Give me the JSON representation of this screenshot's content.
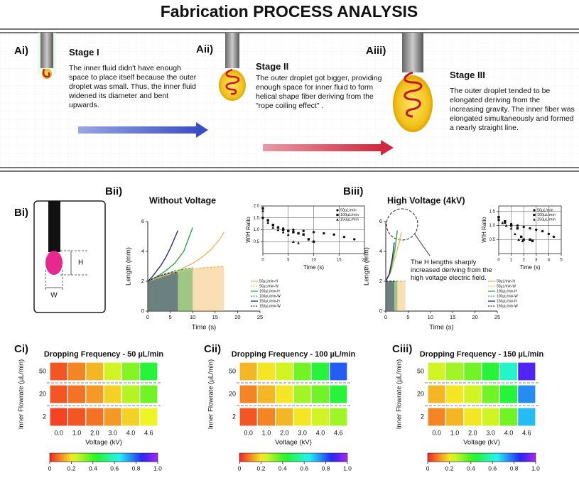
{
  "title": "Fabrication PROCESS ANALYSIS",
  "stages": [
    {
      "label": "Ai)",
      "title": "Stage I",
      "text": "The inner fluid didn't have enough space to place itself because the outer droplet was small. Thus, the inner fluid widened its diameter and bent upwards."
    },
    {
      "label": "Aii)",
      "title": "Stage II",
      "text": "The outer droplet got bigger, providing enough space for inner fluid to form helical shape fiber deriving from the \"rope coiling effect\" ."
    },
    {
      "label": "Aiii)",
      "title": "Stage III",
      "text": "The outer droplet tended to be elongated deriving from the increasing gravity. The inner fiber was elongated simultaneously and formed a nearly straight line."
    }
  ],
  "diagram": {
    "label": "Bi)",
    "h": "H",
    "w": "W"
  },
  "chart_data": [
    {
      "type": "line",
      "panel": "Bii)",
      "title": "Without Voltage",
      "xlabel": "Time (s)",
      "ylabel": "Length (mm)",
      "xlim": [
        0,
        25
      ],
      "ylim": [
        0,
        6
      ],
      "xticks": [
        0,
        5,
        10,
        15,
        20,
        25
      ],
      "yticks": [
        0,
        2,
        4,
        6
      ],
      "grid": false,
      "legend": "lower right",
      "series": [
        {
          "name": "50µL/min-H",
          "color": "#f2b75a",
          "dash": false,
          "area": false,
          "x": [
            0,
            2,
            4,
            6,
            8,
            10,
            12,
            14,
            16,
            17
          ],
          "values": [
            2.0,
            2.2,
            2.4,
            2.6,
            2.9,
            3.2,
            3.6,
            4.1,
            4.8,
            5.3
          ]
        },
        {
          "name": "50µL/min-W",
          "color": "#f2b75a",
          "dash": true,
          "area": true,
          "x": [
            0,
            4,
            8,
            12,
            17
          ],
          "values": [
            2.0,
            2.4,
            2.7,
            2.9,
            3.0
          ]
        },
        {
          "name": "100µL/min-H",
          "color": "#2ea84a",
          "dash": false,
          "area": false,
          "x": [
            0,
            2,
            4,
            6,
            8,
            9,
            10
          ],
          "values": [
            2.0,
            2.3,
            2.7,
            3.2,
            4.0,
            4.8,
            5.6
          ]
        },
        {
          "name": "100µL/min-W",
          "color": "#2ea84a",
          "dash": true,
          "area": true,
          "x": [
            0,
            2,
            4,
            6,
            8,
            10
          ],
          "values": [
            2.0,
            2.3,
            2.5,
            2.7,
            2.8,
            2.9
          ]
        },
        {
          "name": "150µL/min-H",
          "color": "#2b2d7a",
          "dash": false,
          "area": false,
          "x": [
            0,
            1,
            2,
            3,
            4,
            5,
            6,
            6.7
          ],
          "values": [
            2.0,
            2.3,
            2.7,
            3.1,
            3.6,
            4.2,
            4.9,
            5.4
          ]
        },
        {
          "name": "150µL/min-W",
          "color": "#2b2d7a",
          "dash": true,
          "area": true,
          "x": [
            0,
            2,
            4,
            6.7
          ],
          "values": [
            2.0,
            2.3,
            2.5,
            2.6
          ]
        }
      ]
    },
    {
      "type": "scatter",
      "xlabel": "Time (s)",
      "ylabel": "W/H Ratio",
      "xlim": [
        0,
        20
      ],
      "ylim": [
        0,
        2
      ],
      "xticks": [
        0,
        5,
        10,
        15,
        20
      ],
      "yticks": [
        0.5,
        {
          "value": 1,
          "label": "1.0"
        },
        1.5,
        {
          "value": 2,
          "label": "2.0"
        }
      ],
      "grid": true,
      "legend": "upper right",
      "series": [
        {
          "name": "50µL/min",
          "color": "#111111",
          "marker": "circle",
          "x": [
            0,
            2,
            4,
            6,
            8,
            10,
            12,
            14,
            16,
            18
          ],
          "values": [
            1.5,
            1.2,
            1.05,
            1.0,
            0.95,
            0.9,
            0.85,
            0.8,
            0.7,
            0.6
          ]
        },
        {
          "name": "100µL/min",
          "color": "#111111",
          "marker": "square",
          "x": [
            0,
            1,
            2,
            3,
            4,
            5,
            6,
            7,
            8,
            9,
            10
          ],
          "values": [
            1.9,
            1.4,
            1.2,
            1.1,
            1.0,
            0.95,
            0.9,
            0.85,
            0.8,
            0.6,
            0.5
          ]
        },
        {
          "name": "150µL/min",
          "color": "#111111",
          "marker": "triangle",
          "x": [
            0,
            1,
            2,
            3,
            4,
            5,
            6,
            7
          ],
          "values": [
            1.8,
            1.3,
            1.1,
            1.0,
            0.9,
            0.8,
            0.5,
            0.45
          ]
        }
      ]
    },
    {
      "type": "line",
      "panel": "Biii)",
      "title": "High Voltage (4kV)",
      "xlabel": "Time (s)",
      "ylabel": "Length (mm)",
      "annotation": "The H lengths sharply increased deriving from the high voltage electric field.",
      "xlim": [
        0,
        25
      ],
      "ylim": [
        0,
        6
      ],
      "xticks": [
        0,
        5,
        10,
        15,
        20,
        25
      ],
      "yticks": [
        0,
        2,
        4,
        6
      ],
      "grid": false,
      "legend": "lower right",
      "series": [
        {
          "name": "50µL/min-H",
          "color": "#f2b75a",
          "dash": false,
          "area": false,
          "x": [
            0,
            1,
            2,
            3,
            3.5
          ],
          "values": [
            2.0,
            2.5,
            3.5,
            4.6,
            5.3
          ]
        },
        {
          "name": "50µL/min-W",
          "color": "#f2b75a",
          "dash": true,
          "area": true,
          "x": [
            0,
            2,
            4.4
          ],
          "values": [
            2.0,
            2.0,
            2.0
          ]
        },
        {
          "name": "100µL/min-H",
          "color": "#2ea84a",
          "dash": false,
          "area": false,
          "x": [
            0,
            1,
            2,
            2.6
          ],
          "values": [
            2.0,
            2.6,
            4.0,
            5.4
          ]
        },
        {
          "name": "100µL/min-W",
          "color": "#2ea84a",
          "dash": true,
          "area": true,
          "x": [
            0,
            1,
            2.6
          ],
          "values": [
            2.0,
            2.0,
            2.0
          ]
        },
        {
          "name": "150µL/min-H",
          "color": "#2b2d7a",
          "dash": false,
          "area": false,
          "x": [
            0,
            0.8,
            1.5,
            1.9
          ],
          "values": [
            2.0,
            2.5,
            3.6,
            4.6
          ]
        },
        {
          "name": "150µL/min-W",
          "color": "#2b2d7a",
          "dash": true,
          "area": true,
          "x": [
            0,
            1.9
          ],
          "values": [
            2.0,
            2.0
          ]
        }
      ]
    },
    {
      "type": "scatter",
      "xlabel": "Time (s)",
      "ylabel": "W/H Ratio",
      "xlim": [
        0,
        5
      ],
      "ylim": [
        0,
        1.7
      ],
      "xticks": [
        0,
        1,
        2,
        3,
        4,
        5
      ],
      "yticks": [
        0.5,
        {
          "value": 1,
          "label": "1.0"
        },
        1.5
      ],
      "grid": true,
      "legend": "upper right",
      "series": [
        {
          "name": "50µL/min",
          "color": "#111111",
          "marker": "circle",
          "x": [
            0,
            0.5,
            1,
            1.5,
            2,
            2.5,
            3,
            3.5,
            4,
            4.4
          ],
          "values": [
            1.2,
            1.1,
            1.05,
            1.0,
            0.95,
            0.9,
            0.85,
            0.8,
            0.7,
            0.6
          ]
        },
        {
          "name": "100µL/min",
          "color": "#111111",
          "marker": "square",
          "x": [
            0,
            0.5,
            1,
            1.5,
            1.8,
            2,
            2.5,
            2.7
          ],
          "values": [
            1.3,
            1.15,
            1.0,
            0.9,
            0.6,
            0.5,
            0.5,
            0.45
          ]
        },
        {
          "name": "150µL/min",
          "color": "#111111",
          "marker": "triangle",
          "x": [
            0,
            0.3,
            0.6,
            1,
            1.3,
            1.6,
            1.9
          ],
          "values": [
            1.3,
            1.1,
            1.0,
            0.9,
            0.7,
            0.5,
            0.45
          ]
        }
      ]
    },
    {
      "type": "heatmap",
      "panel": "Ci)",
      "title": "Dropping Frequency - 50 µL/min",
      "xlabel": "Voltage (kV)",
      "ylabel": "Inner Flowrate (µL/min)",
      "categories": [
        "0.0",
        "1.0",
        "2.0",
        "3.0",
        "4.0",
        "4.6"
      ],
      "y_categories": [
        "50",
        "20",
        "2"
      ],
      "values": [
        [
          0.05,
          0.1,
          0.15,
          0.25,
          0.33,
          0.45
        ],
        [
          0.05,
          0.08,
          0.12,
          0.18,
          0.28,
          0.35
        ],
        [
          0.03,
          0.05,
          0.08,
          0.12,
          0.18,
          0.22
        ]
      ],
      "colormap": "rainbow",
      "clim": [
        0,
        1
      ],
      "cticks": [
        0,
        0.2,
        0.4,
        0.6,
        0.8,
        {
          "value": 1,
          "label": "1.0"
        }
      ]
    },
    {
      "type": "heatmap",
      "panel": "Cii)",
      "title": "Dropping Frequency - 100 µL/min",
      "xlabel": "Voltage (kV)",
      "ylabel": "Inner Flowrate (µL/min)",
      "categories": [
        "0.0",
        "1.0",
        "2.0",
        "3.0",
        "4.0",
        "4.6"
      ],
      "y_categories": [
        "50",
        "20",
        "2"
      ],
      "values": [
        [
          0.15,
          0.2,
          0.25,
          0.35,
          0.45,
          0.8
        ],
        [
          0.1,
          0.15,
          0.2,
          0.3,
          0.35,
          0.45
        ],
        [
          0.05,
          0.1,
          0.15,
          0.2,
          0.25,
          0.3
        ]
      ],
      "colormap": "rainbow",
      "clim": [
        0,
        1
      ],
      "cticks": [
        0,
        0.2,
        0.4,
        0.6,
        0.8,
        {
          "value": 1,
          "label": "1.0"
        }
      ]
    },
    {
      "type": "heatmap",
      "panel": "Ciii)",
      "title": "Dropping Frequency - 150 µL/min",
      "xlabel": "Voltage (kV)",
      "ylabel": "Inner Flowrate (µL/min)",
      "categories": [
        "0.0",
        "1.0",
        "2.0",
        "3.0",
        "4.0",
        "4.6"
      ],
      "y_categories": [
        "50",
        "20",
        "2"
      ],
      "values": [
        [
          0.25,
          0.3,
          0.35,
          0.45,
          0.6,
          0.9
        ],
        [
          0.15,
          0.2,
          0.25,
          0.35,
          0.45,
          0.75
        ],
        [
          0.1,
          0.15,
          0.2,
          0.25,
          0.35,
          0.7
        ]
      ],
      "colormap": "rainbow",
      "clim": [
        0,
        1
      ],
      "cticks": [
        0,
        0.2,
        0.4,
        0.6,
        0.8,
        {
          "value": 1,
          "label": "1.0"
        }
      ]
    }
  ]
}
